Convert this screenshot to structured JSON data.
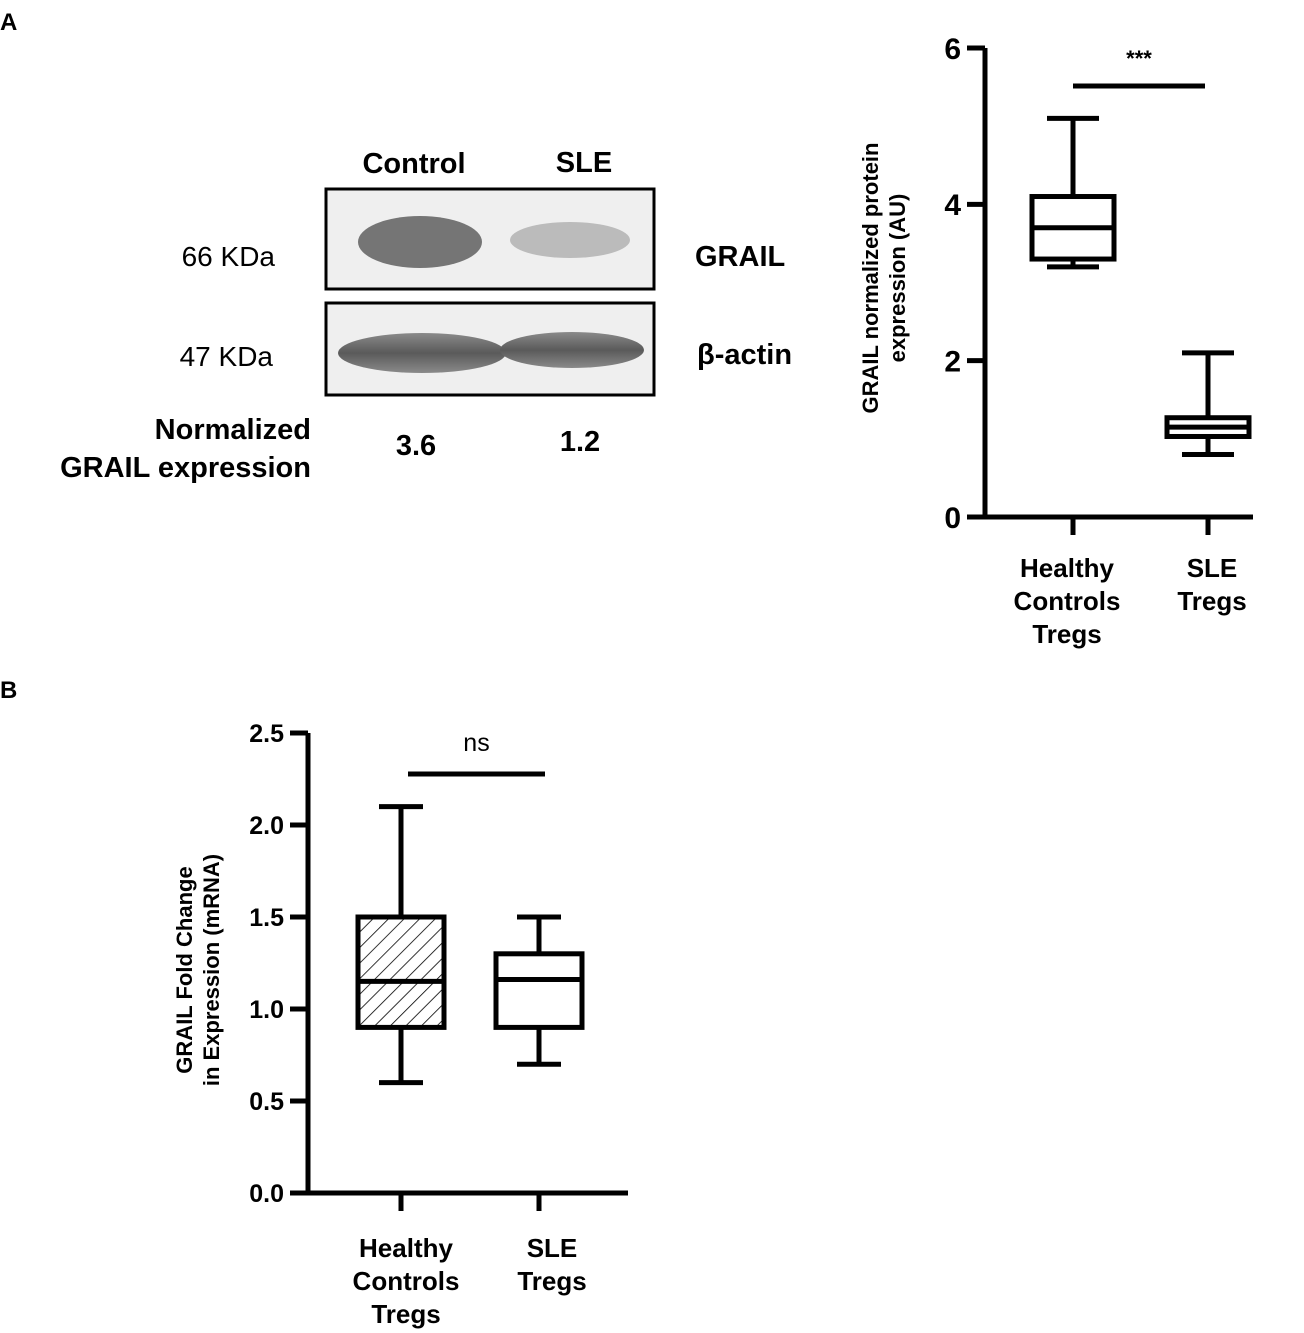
{
  "panel_a": {
    "label": "A",
    "blot": {
      "lanes": [
        "Control",
        "SLE"
      ],
      "rows": [
        {
          "weight": "66 KDa",
          "protein": "GRAIL"
        },
        {
          "weight": "47 KDa",
          "protein": "β-actin"
        }
      ],
      "normalized_label_line1": "Normalized",
      "normalized_label_line2": "GRAIL expression",
      "normalized_values": [
        "3.6",
        "1.2"
      ]
    }
  },
  "panel_b": {
    "label": "B"
  },
  "chart_data": [
    {
      "id": "A-boxplot",
      "type": "box",
      "title": "",
      "ylabel_line1": "GRAIL normalized protein",
      "ylabel_line2": "expression (AU)",
      "ylim": [
        0,
        6
      ],
      "yticks": [
        "0",
        "2",
        "4",
        "6"
      ],
      "categories": [
        {
          "lines": [
            "Healthy",
            "Controls",
            "Tregs"
          ]
        },
        {
          "lines": [
            "SLE",
            "Tregs"
          ]
        }
      ],
      "series": [
        {
          "min": 3.2,
          "q1": 3.3,
          "median": 3.7,
          "q3": 4.1,
          "max": 5.1,
          "fill": "none"
        },
        {
          "min": 0.8,
          "q1": 1.03,
          "median": 1.15,
          "q3": 1.27,
          "max": 2.1,
          "fill": "none"
        }
      ],
      "significance": "***",
      "grid": false
    },
    {
      "id": "B-boxplot",
      "type": "box",
      "title": "",
      "ylabel_line1": "GRAIL Fold Change",
      "ylabel_line2": "in Expression (mRNA)",
      "ylim": [
        0,
        2.5
      ],
      "yticks": [
        "0.0",
        "0.5",
        "1.0",
        "1.5",
        "2.0",
        "2.5"
      ],
      "categories": [
        {
          "lines": [
            "Healthy",
            "Controls",
            "Tregs"
          ]
        },
        {
          "lines": [
            "SLE",
            "Tregs"
          ]
        }
      ],
      "series": [
        {
          "min": 0.6,
          "q1": 0.9,
          "median": 1.15,
          "q3": 1.5,
          "max": 2.1,
          "fill": "hatched"
        },
        {
          "min": 0.7,
          "q1": 0.9,
          "median": 1.16,
          "q3": 1.3,
          "max": 1.5,
          "fill": "none"
        }
      ],
      "significance": "ns",
      "grid": false
    }
  ]
}
